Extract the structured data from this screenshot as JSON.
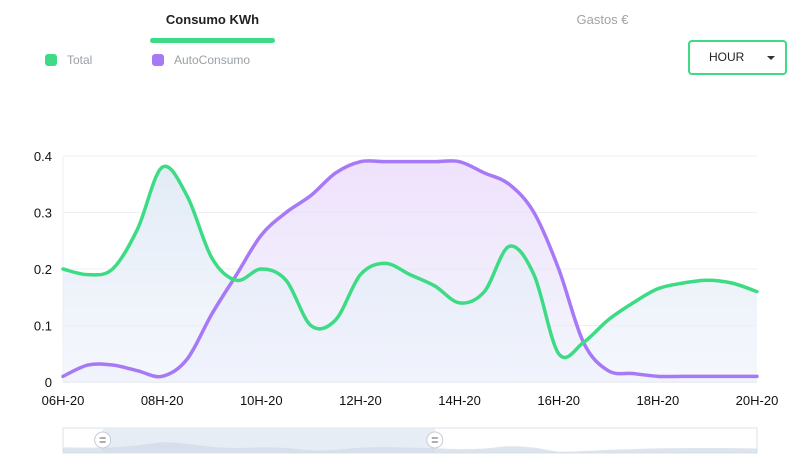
{
  "tabs": [
    {
      "label": "Consumo KWh",
      "active": true
    },
    {
      "label": "Gastos €",
      "active": false
    }
  ],
  "legend": [
    {
      "label": "Total",
      "color": "#3ddc84"
    },
    {
      "label": "AutoConsumo",
      "color": "#a879f6"
    }
  ],
  "period_select": {
    "value": "HOUR",
    "icon": "caret-down-icon"
  },
  "colors": {
    "accent": "#3ddc84",
    "total": "#3ddc84",
    "autoconsumo": "#a879f6"
  },
  "chart_data": {
    "type": "area",
    "x_ticks": [
      "06H-20",
      "08H-20",
      "10H-20",
      "12H-20",
      "14H-20",
      "16H-20",
      "18H-20",
      "20H-20"
    ],
    "y_ticks": [
      "0",
      "0.1",
      "0.2",
      "0.3",
      "0.4"
    ],
    "xlim": [
      6,
      20
    ],
    "ylim": [
      0,
      0.4
    ],
    "grid": true,
    "legend_position": "top-left",
    "series": [
      {
        "name": "Total",
        "x": [
          6,
          6.5,
          7,
          7.5,
          8,
          8.5,
          9,
          9.5,
          10,
          10.5,
          11,
          11.5,
          12,
          12.5,
          13,
          13.5,
          14,
          14.5,
          15,
          15.5,
          16,
          16.5,
          17,
          17.5,
          18,
          18.5,
          19,
          19.5,
          20
        ],
        "values": [
          0.2,
          0.19,
          0.2,
          0.27,
          0.38,
          0.33,
          0.22,
          0.18,
          0.2,
          0.18,
          0.1,
          0.11,
          0.19,
          0.21,
          0.19,
          0.17,
          0.14,
          0.16,
          0.24,
          0.19,
          0.05,
          0.07,
          0.11,
          0.14,
          0.165,
          0.175,
          0.18,
          0.175,
          0.16
        ]
      },
      {
        "name": "AutoConsumo",
        "x": [
          6,
          6.5,
          7,
          7.5,
          8,
          8.5,
          9,
          9.5,
          10,
          10.5,
          11,
          11.5,
          12,
          12.5,
          13,
          13.5,
          14,
          14.5,
          15,
          15.5,
          16,
          16.5,
          17,
          17.5,
          18,
          18.5,
          19,
          19.5,
          20
        ],
        "values": [
          0.01,
          0.03,
          0.03,
          0.02,
          0.01,
          0.04,
          0.12,
          0.19,
          0.26,
          0.3,
          0.33,
          0.37,
          0.39,
          0.39,
          0.39,
          0.39,
          0.39,
          0.37,
          0.35,
          0.3,
          0.2,
          0.07,
          0.02,
          0.015,
          0.01,
          0.01,
          0.01,
          0.01,
          0.01
        ]
      }
    ]
  },
  "navigator": {
    "range_start": 6.8,
    "range_end": 13.5
  }
}
